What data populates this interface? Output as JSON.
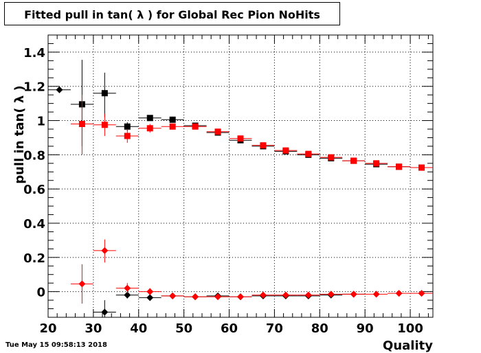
{
  "title": "Fitted pull in tan( λ ) for Global Rec Pion NoHits",
  "footer_date": "Tue May 15 09:58:13 2018",
  "chart_data": {
    "type": "scatter",
    "title": "Fitted pull in tan( λ ) for Global Rec Pion NoHits",
    "xlabel": "Quality",
    "ylabel": "pull in tan( λ )",
    "xlim": [
      20,
      105
    ],
    "ylim": [
      -0.15,
      1.5
    ],
    "x_ticks": [
      "20",
      "30",
      "40",
      "50",
      "60",
      "70",
      "80",
      "90",
      "100"
    ],
    "y_ticks": [
      "0",
      "0.2",
      "0.4",
      "0.6",
      "0.8",
      "1",
      "1.2",
      "1.4"
    ],
    "grid": true,
    "series": [
      {
        "marker": "square",
        "color": "#000000",
        "points": [
          {
            "x": 27.5,
            "y": 1.095,
            "xerr": 2.5,
            "ylo": 0.85,
            "yhi": 1.355
          },
          {
            "x": 32.5,
            "y": 1.16,
            "xerr": 2.5,
            "ylo": 1.02,
            "yhi": 1.28
          },
          {
            "x": 37.5,
            "y": 0.965,
            "xerr": 2.5,
            "ylo": 0.94,
            "yhi": 0.99
          },
          {
            "x": 42.5,
            "y": 1.015,
            "xerr": 2.5,
            "ylo": 1.0,
            "yhi": 1.03
          },
          {
            "x": 47.5,
            "y": 1.005,
            "xerr": 2.5,
            "ylo": 0.995,
            "yhi": 1.015
          },
          {
            "x": 52.5,
            "y": 0.97,
            "xerr": 2.5,
            "ylo": 0.96,
            "yhi": 0.98
          },
          {
            "x": 57.5,
            "y": 0.93,
            "xerr": 2.5,
            "ylo": 0.92,
            "yhi": 0.94
          },
          {
            "x": 62.5,
            "y": 0.885,
            "xerr": 2.5,
            "ylo": 0.875,
            "yhi": 0.895
          },
          {
            "x": 67.5,
            "y": 0.85,
            "xerr": 2.5,
            "ylo": 0.84,
            "yhi": 0.86
          },
          {
            "x": 72.5,
            "y": 0.82,
            "xerr": 2.5,
            "ylo": 0.81,
            "yhi": 0.83
          },
          {
            "x": 77.5,
            "y": 0.8,
            "xerr": 2.5,
            "ylo": 0.79,
            "yhi": 0.81
          },
          {
            "x": 82.5,
            "y": 0.78,
            "xerr": 2.5,
            "ylo": 0.77,
            "yhi": 0.79
          },
          {
            "x": 87.5,
            "y": 0.765,
            "xerr": 2.5,
            "ylo": 0.755,
            "yhi": 0.775
          },
          {
            "x": 92.5,
            "y": 0.745,
            "xerr": 2.5,
            "ylo": 0.735,
            "yhi": 0.755
          },
          {
            "x": 97.5,
            "y": 0.73,
            "xerr": 2.5,
            "ylo": 0.72,
            "yhi": 0.74
          },
          {
            "x": 102.5,
            "y": 0.725,
            "xerr": 2.5,
            "ylo": 0.715,
            "yhi": 0.735
          }
        ]
      },
      {
        "marker": "square",
        "color": "#ff0000",
        "points": [
          {
            "x": 27.5,
            "y": 0.98,
            "xerr": 2.5,
            "ylo": 0.8,
            "yhi": 1.15
          },
          {
            "x": 32.5,
            "y": 0.975,
            "xerr": 2.5,
            "ylo": 0.91,
            "yhi": 1.04
          },
          {
            "x": 37.5,
            "y": 0.91,
            "xerr": 2.5,
            "ylo": 0.87,
            "yhi": 0.95
          },
          {
            "x": 42.5,
            "y": 0.955,
            "xerr": 2.5,
            "ylo": 0.93,
            "yhi": 0.98
          },
          {
            "x": 47.5,
            "y": 0.965,
            "xerr": 2.5,
            "ylo": 0.95,
            "yhi": 0.98
          },
          {
            "x": 52.5,
            "y": 0.965,
            "xerr": 2.5,
            "ylo": 0.955,
            "yhi": 0.975
          },
          {
            "x": 57.5,
            "y": 0.935,
            "xerr": 2.5,
            "ylo": 0.925,
            "yhi": 0.945
          },
          {
            "x": 62.5,
            "y": 0.895,
            "xerr": 2.5,
            "ylo": 0.885,
            "yhi": 0.905
          },
          {
            "x": 67.5,
            "y": 0.855,
            "xerr": 2.5,
            "ylo": 0.845,
            "yhi": 0.865
          },
          {
            "x": 72.5,
            "y": 0.825,
            "xerr": 2.5,
            "ylo": 0.815,
            "yhi": 0.835
          },
          {
            "x": 77.5,
            "y": 0.805,
            "xerr": 2.5,
            "ylo": 0.795,
            "yhi": 0.815
          },
          {
            "x": 82.5,
            "y": 0.785,
            "xerr": 2.5,
            "ylo": 0.775,
            "yhi": 0.795
          },
          {
            "x": 87.5,
            "y": 0.765,
            "xerr": 2.5,
            "ylo": 0.755,
            "yhi": 0.775
          },
          {
            "x": 92.5,
            "y": 0.75,
            "xerr": 2.5,
            "ylo": 0.74,
            "yhi": 0.76
          },
          {
            "x": 97.5,
            "y": 0.73,
            "xerr": 2.5,
            "ylo": 0.72,
            "yhi": 0.74
          },
          {
            "x": 102.5,
            "y": 0.725,
            "xerr": 2.5,
            "ylo": 0.715,
            "yhi": 0.735
          }
        ]
      },
      {
        "marker": "diamond",
        "color": "#000000",
        "points": [
          {
            "x": 22.5,
            "y": 1.18,
            "xerr": 2.5,
            "ylo": 1.18,
            "yhi": 1.18
          },
          {
            "x": 32.5,
            "y": -0.12,
            "xerr": 2.5,
            "ylo": -0.15,
            "yhi": -0.05
          },
          {
            "x": 37.5,
            "y": -0.02,
            "xerr": 2.5,
            "ylo": -0.04,
            "yhi": 0.0
          },
          {
            "x": 42.5,
            "y": -0.035,
            "xerr": 2.5,
            "ylo": -0.05,
            "yhi": -0.02
          },
          {
            "x": 47.5,
            "y": -0.025,
            "xerr": 2.5,
            "ylo": -0.035,
            "yhi": -0.015
          },
          {
            "x": 52.5,
            "y": -0.03,
            "xerr": 2.5,
            "ylo": -0.04,
            "yhi": -0.02
          },
          {
            "x": 57.5,
            "y": -0.025,
            "xerr": 2.5,
            "ylo": -0.035,
            "yhi": -0.015
          },
          {
            "x": 62.5,
            "y": -0.03,
            "xerr": 2.5,
            "ylo": -0.04,
            "yhi": -0.02
          },
          {
            "x": 67.5,
            "y": -0.025,
            "xerr": 2.5,
            "ylo": -0.035,
            "yhi": -0.015
          },
          {
            "x": 72.5,
            "y": -0.025,
            "xerr": 2.5,
            "ylo": -0.035,
            "yhi": -0.015
          },
          {
            "x": 77.5,
            "y": -0.025,
            "xerr": 2.5,
            "ylo": -0.035,
            "yhi": -0.015
          },
          {
            "x": 82.5,
            "y": -0.02,
            "xerr": 2.5,
            "ylo": -0.03,
            "yhi": -0.01
          },
          {
            "x": 87.5,
            "y": -0.015,
            "xerr": 2.5,
            "ylo": -0.025,
            "yhi": -0.005
          }
        ]
      },
      {
        "marker": "diamond",
        "color": "#ff0000",
        "points": [
          {
            "x": 27.5,
            "y": 0.045,
            "xerr": 2.5,
            "ylo": -0.07,
            "yhi": 0.16
          },
          {
            "x": 32.5,
            "y": 0.24,
            "xerr": 2.5,
            "ylo": 0.17,
            "yhi": 0.305
          },
          {
            "x": 37.5,
            "y": 0.02,
            "xerr": 2.5,
            "ylo": -0.01,
            "yhi": 0.05
          },
          {
            "x": 42.5,
            "y": 0.0,
            "xerr": 2.5,
            "ylo": -0.02,
            "yhi": 0.02
          },
          {
            "x": 47.5,
            "y": -0.025,
            "xerr": 2.5,
            "ylo": -0.035,
            "yhi": -0.015
          },
          {
            "x": 52.5,
            "y": -0.03,
            "xerr": 2.5,
            "ylo": -0.04,
            "yhi": -0.02
          },
          {
            "x": 57.5,
            "y": -0.03,
            "xerr": 2.5,
            "ylo": -0.04,
            "yhi": -0.02
          },
          {
            "x": 62.5,
            "y": -0.03,
            "xerr": 2.5,
            "ylo": -0.04,
            "yhi": -0.02
          },
          {
            "x": 67.5,
            "y": -0.02,
            "xerr": 2.5,
            "ylo": -0.03,
            "yhi": -0.01
          },
          {
            "x": 72.5,
            "y": -0.02,
            "xerr": 2.5,
            "ylo": -0.03,
            "yhi": -0.01
          },
          {
            "x": 77.5,
            "y": -0.02,
            "xerr": 2.5,
            "ylo": -0.03,
            "yhi": -0.01
          },
          {
            "x": 82.5,
            "y": -0.015,
            "xerr": 2.5,
            "ylo": -0.025,
            "yhi": -0.005
          },
          {
            "x": 87.5,
            "y": -0.015,
            "xerr": 2.5,
            "ylo": -0.025,
            "yhi": -0.005
          },
          {
            "x": 92.5,
            "y": -0.015,
            "xerr": 2.5,
            "ylo": -0.025,
            "yhi": -0.005
          },
          {
            "x": 97.5,
            "y": -0.01,
            "xerr": 2.5,
            "ylo": -0.02,
            "yhi": 0.0
          },
          {
            "x": 102.5,
            "y": -0.01,
            "xerr": 2.5,
            "ylo": -0.02,
            "yhi": 0.0
          }
        ]
      }
    ]
  }
}
